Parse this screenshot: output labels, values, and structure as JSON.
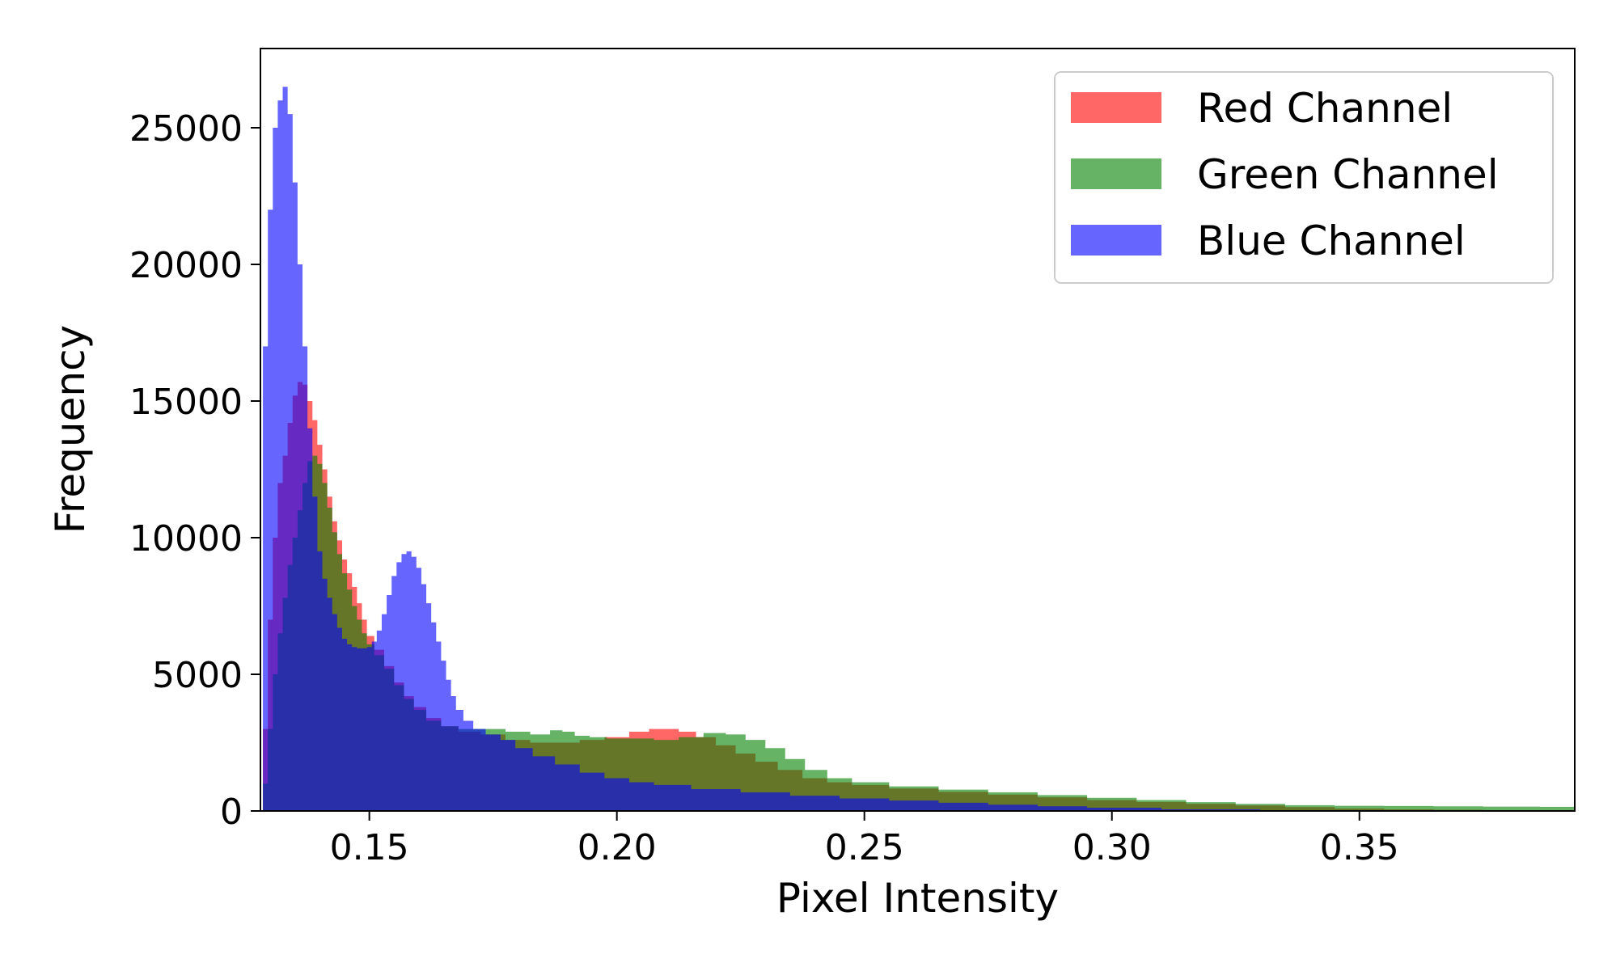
{
  "chart_data": {
    "type": "histogram",
    "title": "",
    "xlabel": "Pixel Intensity",
    "ylabel": "Frequency",
    "xlim": [
      0.128,
      0.3935
    ],
    "ylim": [
      0,
      27900
    ],
    "x_ticks": [
      {
        "value": 0.15,
        "label": "0.15"
      },
      {
        "value": 0.2,
        "label": "0.20"
      },
      {
        "value": 0.25,
        "label": "0.25"
      },
      {
        "value": 0.3,
        "label": "0.30"
      },
      {
        "value": 0.35,
        "label": "0.35"
      }
    ],
    "y_ticks": [
      {
        "value": 0,
        "label": "0"
      },
      {
        "value": 5000,
        "label": "5000"
      },
      {
        "value": 10000,
        "label": "10000"
      },
      {
        "value": 15000,
        "label": "15000"
      },
      {
        "value": 20000,
        "label": "20000"
      },
      {
        "value": 25000,
        "label": "25000"
      }
    ],
    "grid": false,
    "legend": {
      "position": "top-right"
    },
    "bin_width": 0.001,
    "series": [
      {
        "name": "Red Channel",
        "color": "#ff0000",
        "opacity": 0.6,
        "points": [
          [
            0.128,
            0
          ],
          [
            0.129,
            3000
          ],
          [
            0.13,
            7000
          ],
          [
            0.131,
            10000
          ],
          [
            0.132,
            12000
          ],
          [
            0.133,
            13000
          ],
          [
            0.134,
            14200
          ],
          [
            0.135,
            15200
          ],
          [
            0.136,
            15700
          ],
          [
            0.137,
            15600
          ],
          [
            0.138,
            15000
          ],
          [
            0.139,
            14300
          ],
          [
            0.14,
            13400
          ],
          [
            0.141,
            12500
          ],
          [
            0.142,
            11500
          ],
          [
            0.143,
            10600
          ],
          [
            0.144,
            9900
          ],
          [
            0.145,
            9200
          ],
          [
            0.146,
            8700
          ],
          [
            0.147,
            8200
          ],
          [
            0.148,
            7600
          ],
          [
            0.149,
            7000
          ],
          [
            0.15,
            6400
          ],
          [
            0.152,
            5900
          ],
          [
            0.154,
            5300
          ],
          [
            0.156,
            4700
          ],
          [
            0.158,
            4200
          ],
          [
            0.16,
            3800
          ],
          [
            0.163,
            3400
          ],
          [
            0.166,
            3100
          ],
          [
            0.17,
            2900
          ],
          [
            0.175,
            2800
          ],
          [
            0.18,
            2600
          ],
          [
            0.185,
            2500
          ],
          [
            0.19,
            2500
          ],
          [
            0.195,
            2600
          ],
          [
            0.2,
            2700
          ],
          [
            0.205,
            2900
          ],
          [
            0.208,
            3000
          ],
          [
            0.211,
            3000
          ],
          [
            0.214,
            2900
          ],
          [
            0.218,
            2700
          ],
          [
            0.222,
            2400
          ],
          [
            0.226,
            2100
          ],
          [
            0.23,
            1800
          ],
          [
            0.235,
            1500
          ],
          [
            0.24,
            1200
          ],
          [
            0.245,
            1050
          ],
          [
            0.25,
            950
          ],
          [
            0.26,
            820
          ],
          [
            0.27,
            700
          ],
          [
            0.28,
            600
          ],
          [
            0.29,
            500
          ],
          [
            0.3,
            400
          ],
          [
            0.31,
            330
          ],
          [
            0.32,
            260
          ],
          [
            0.33,
            200
          ],
          [
            0.34,
            140
          ],
          [
            0.35,
            90
          ],
          [
            0.36,
            60
          ],
          [
            0.37,
            40
          ],
          [
            0.38,
            25
          ],
          [
            0.393,
            15
          ]
        ]
      },
      {
        "name": "Green Channel",
        "color": "#008000",
        "opacity": 0.6,
        "points": [
          [
            0.128,
            0
          ],
          [
            0.129,
            1000
          ],
          [
            0.13,
            3000
          ],
          [
            0.131,
            5000
          ],
          [
            0.132,
            6500
          ],
          [
            0.133,
            7800
          ],
          [
            0.134,
            9000
          ],
          [
            0.135,
            10000
          ],
          [
            0.136,
            11000
          ],
          [
            0.137,
            12000
          ],
          [
            0.138,
            12800
          ],
          [
            0.139,
            13000
          ],
          [
            0.14,
            12700
          ],
          [
            0.141,
            12000
          ],
          [
            0.142,
            11100
          ],
          [
            0.143,
            10200
          ],
          [
            0.144,
            9400
          ],
          [
            0.145,
            8700
          ],
          [
            0.146,
            8100
          ],
          [
            0.147,
            7500
          ],
          [
            0.148,
            7000
          ],
          [
            0.149,
            6500
          ],
          [
            0.15,
            6100
          ],
          [
            0.152,
            5700
          ],
          [
            0.154,
            5200
          ],
          [
            0.156,
            4600
          ],
          [
            0.158,
            4100
          ],
          [
            0.16,
            3700
          ],
          [
            0.163,
            3300
          ],
          [
            0.166,
            3100
          ],
          [
            0.17,
            3000
          ],
          [
            0.175,
            3000
          ],
          [
            0.18,
            2900
          ],
          [
            0.185,
            2800
          ],
          [
            0.188,
            2950
          ],
          [
            0.19,
            2900
          ],
          [
            0.193,
            2750
          ],
          [
            0.196,
            2700
          ],
          [
            0.2,
            2650
          ],
          [
            0.205,
            2650
          ],
          [
            0.21,
            2600
          ],
          [
            0.215,
            2700
          ],
          [
            0.22,
            2850
          ],
          [
            0.224,
            2800
          ],
          [
            0.228,
            2600
          ],
          [
            0.232,
            2300
          ],
          [
            0.236,
            1900
          ],
          [
            0.24,
            1500
          ],
          [
            0.245,
            1200
          ],
          [
            0.25,
            1050
          ],
          [
            0.26,
            900
          ],
          [
            0.27,
            780
          ],
          [
            0.28,
            680
          ],
          [
            0.29,
            580
          ],
          [
            0.3,
            480
          ],
          [
            0.31,
            400
          ],
          [
            0.32,
            320
          ],
          [
            0.33,
            260
          ],
          [
            0.34,
            210
          ],
          [
            0.35,
            190
          ],
          [
            0.36,
            180
          ],
          [
            0.37,
            170
          ],
          [
            0.38,
            160
          ],
          [
            0.393,
            150
          ]
        ]
      },
      {
        "name": "Blue Channel",
        "color": "#0000ff",
        "opacity": 0.6,
        "points": [
          [
            0.128,
            0
          ],
          [
            0.129,
            17000
          ],
          [
            0.13,
            22000
          ],
          [
            0.131,
            25000
          ],
          [
            0.132,
            26000
          ],
          [
            0.133,
            26500
          ],
          [
            0.134,
            25500
          ],
          [
            0.135,
            23000
          ],
          [
            0.136,
            20000
          ],
          [
            0.137,
            17000
          ],
          [
            0.138,
            14000
          ],
          [
            0.139,
            11500
          ],
          [
            0.14,
            9500
          ],
          [
            0.141,
            8500
          ],
          [
            0.142,
            7800
          ],
          [
            0.143,
            7200
          ],
          [
            0.144,
            6700
          ],
          [
            0.145,
            6300
          ],
          [
            0.146,
            6100
          ],
          [
            0.147,
            6000
          ],
          [
            0.148,
            5950
          ],
          [
            0.149,
            5950
          ],
          [
            0.15,
            6000
          ],
          [
            0.151,
            6200
          ],
          [
            0.152,
            6600
          ],
          [
            0.153,
            7200
          ],
          [
            0.154,
            7900
          ],
          [
            0.155,
            8600
          ],
          [
            0.156,
            9100
          ],
          [
            0.157,
            9400
          ],
          [
            0.158,
            9500
          ],
          [
            0.159,
            9300
          ],
          [
            0.16,
            8900
          ],
          [
            0.161,
            8300
          ],
          [
            0.162,
            7600
          ],
          [
            0.163,
            6900
          ],
          [
            0.164,
            6200
          ],
          [
            0.165,
            5500
          ],
          [
            0.166,
            4800
          ],
          [
            0.167,
            4200
          ],
          [
            0.168,
            3700
          ],
          [
            0.17,
            3300
          ],
          [
            0.172,
            3000
          ],
          [
            0.175,
            2800
          ],
          [
            0.178,
            2600
          ],
          [
            0.181,
            2300
          ],
          [
            0.185,
            2000
          ],
          [
            0.19,
            1700
          ],
          [
            0.195,
            1400
          ],
          [
            0.2,
            1200
          ],
          [
            0.205,
            1050
          ],
          [
            0.21,
            950
          ],
          [
            0.22,
            800
          ],
          [
            0.23,
            680
          ],
          [
            0.24,
            560
          ],
          [
            0.25,
            460
          ],
          [
            0.26,
            380
          ],
          [
            0.27,
            300
          ],
          [
            0.28,
            230
          ],
          [
            0.29,
            170
          ],
          [
            0.3,
            120
          ],
          [
            0.32,
            60
          ],
          [
            0.34,
            25
          ],
          [
            0.36,
            10
          ],
          [
            0.393,
            5
          ]
        ]
      }
    ]
  }
}
